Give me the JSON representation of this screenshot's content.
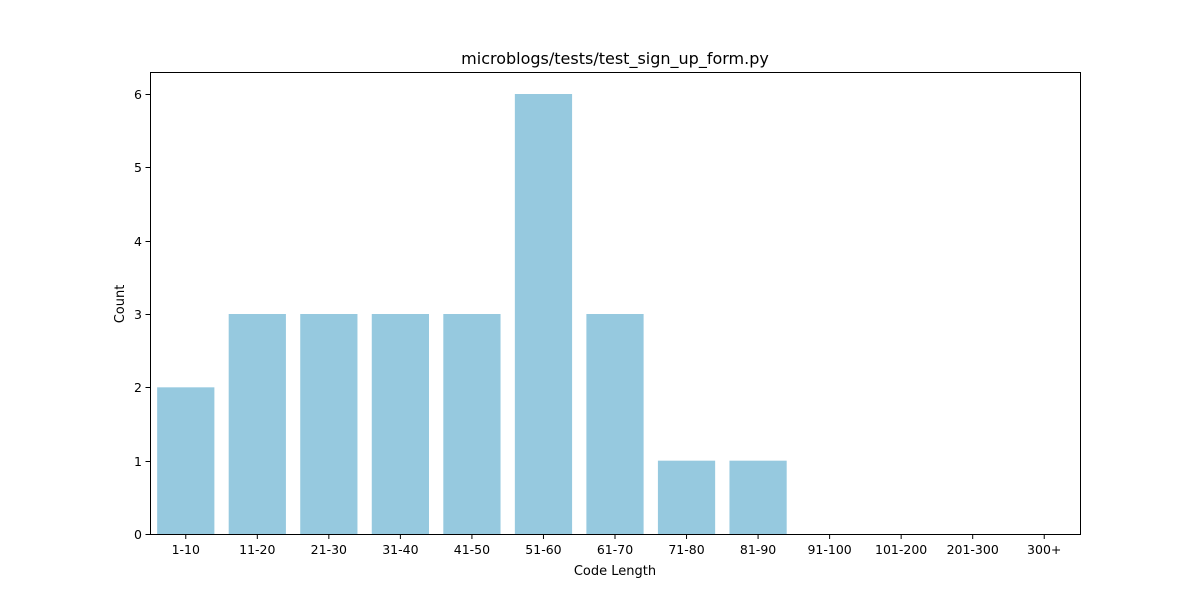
{
  "chart_data": {
    "type": "bar",
    "title": "microblogs/tests/test_sign_up_form.py",
    "xlabel": "Code Length",
    "ylabel": "Count",
    "categories": [
      "1-10",
      "11-20",
      "21-30",
      "31-40",
      "41-50",
      "51-60",
      "61-70",
      "71-80",
      "81-90",
      "91-100",
      "101-200",
      "201-300",
      "300+"
    ],
    "values": [
      2,
      3,
      3,
      3,
      3,
      6,
      3,
      1,
      1,
      0,
      0,
      0,
      0
    ],
    "yticks": [
      "0",
      "1",
      "2",
      "3",
      "4",
      "5",
      "6"
    ],
    "ylim": [
      0,
      6.3
    ],
    "bar_color": "#96c9df",
    "grid": false,
    "legend": "none"
  }
}
